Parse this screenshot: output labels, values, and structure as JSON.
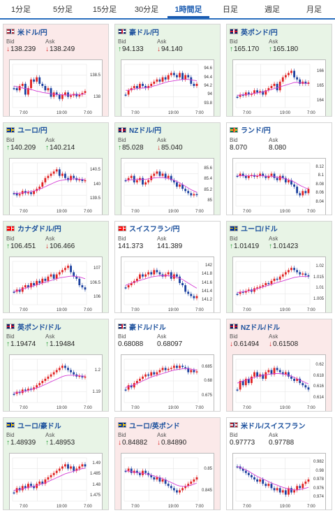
{
  "tabs": [
    {
      "label": "1分足"
    },
    {
      "label": "5分足"
    },
    {
      "label": "15分足"
    },
    {
      "label": "30分足"
    },
    {
      "label": "1時間足",
      "active": true
    },
    {
      "label": "日足"
    },
    {
      "label": "週足"
    },
    {
      "label": "月足"
    }
  ],
  "bid_label": "Bid",
  "ask_label": "Ask",
  "x_ticks": [
    "7:00",
    "19:00",
    "7:00"
  ],
  "pairs": [
    {
      "name": "米ドル/円",
      "flag": "us",
      "state": "down",
      "bid": "138.239",
      "ask": "138.249",
      "bid_dir": "down",
      "ask_dir": "down",
      "yticks": [
        "138.5",
        "138"
      ],
      "series": [
        0.55,
        0.6,
        0.5,
        0.45,
        0.7,
        0.55,
        0.35,
        0.4,
        0.3,
        0.45,
        0.5,
        0.6,
        0.55,
        0.75,
        0.65,
        0.7,
        0.8,
        0.7,
        0.65,
        0.75,
        0.72,
        0.68,
        0.74,
        0.7,
        0.66,
        0.62
      ],
      "ma": [
        0.5,
        0.52,
        0.53,
        0.55,
        0.56,
        0.57,
        0.58,
        0.6,
        0.62,
        0.63,
        0.65,
        0.66,
        0.67,
        0.68,
        0.69,
        0.7,
        0.7,
        0.7,
        0.71,
        0.71,
        0.71,
        0.7,
        0.7,
        0.7,
        0.69,
        0.68
      ]
    },
    {
      "name": "豪ドル/円",
      "flag": "au",
      "state": "up",
      "bid": "94.133",
      "ask": "94.140",
      "bid_dir": "up",
      "ask_dir": "down",
      "yticks": [
        "94.6",
        "94.4",
        "94.2",
        "94",
        "93.8"
      ],
      "series": [
        0.7,
        0.6,
        0.55,
        0.5,
        0.55,
        0.45,
        0.5,
        0.55,
        0.5,
        0.45,
        0.4,
        0.35,
        0.4,
        0.3,
        0.35,
        0.25,
        0.2,
        0.25,
        0.3,
        0.2,
        0.35,
        0.25,
        0.3,
        0.45,
        0.5,
        0.45
      ],
      "ma": [
        0.6,
        0.6,
        0.58,
        0.57,
        0.56,
        0.55,
        0.55,
        0.54,
        0.53,
        0.52,
        0.5,
        0.48,
        0.46,
        0.44,
        0.42,
        0.4,
        0.39,
        0.38,
        0.37,
        0.36,
        0.35,
        0.35,
        0.35,
        0.36,
        0.37,
        0.38
      ]
    },
    {
      "name": "英ポンド/円",
      "flag": "gb",
      "state": "up",
      "bid": "165.170",
      "ask": "165.180",
      "bid_dir": "up",
      "ask_dir": "up",
      "yticks": [
        "166",
        "165",
        "164"
      ],
      "series": [
        0.75,
        0.7,
        0.72,
        0.65,
        0.7,
        0.68,
        0.6,
        0.65,
        0.62,
        0.7,
        0.6,
        0.55,
        0.5,
        0.45,
        0.6,
        0.4,
        0.3,
        0.25,
        0.2,
        0.15,
        0.3,
        0.35,
        0.45,
        0.4,
        0.45,
        0.42
      ],
      "ma": [
        0.72,
        0.71,
        0.7,
        0.7,
        0.69,
        0.68,
        0.67,
        0.66,
        0.65,
        0.64,
        0.62,
        0.6,
        0.58,
        0.56,
        0.54,
        0.52,
        0.5,
        0.48,
        0.46,
        0.44,
        0.42,
        0.42,
        0.43,
        0.43,
        0.44,
        0.44
      ]
    },
    {
      "name": "ユーロ/円",
      "flag": "eu",
      "state": "up",
      "bid": "140.209",
      "ask": "140.214",
      "bid_dir": "up",
      "ask_dir": "up",
      "yticks": [
        "140.5",
        "140",
        "139.5"
      ],
      "series": [
        0.7,
        0.75,
        0.72,
        0.65,
        0.7,
        0.68,
        0.72,
        0.65,
        0.6,
        0.55,
        0.45,
        0.35,
        0.3,
        0.25,
        0.2,
        0.15,
        0.3,
        0.25,
        0.35,
        0.4,
        0.3,
        0.35,
        0.4,
        0.38,
        0.42,
        0.4
      ],
      "ma": [
        0.7,
        0.7,
        0.7,
        0.69,
        0.68,
        0.67,
        0.66,
        0.65,
        0.63,
        0.61,
        0.58,
        0.55,
        0.52,
        0.49,
        0.46,
        0.43,
        0.41,
        0.4,
        0.39,
        0.38,
        0.37,
        0.37,
        0.37,
        0.38,
        0.38,
        0.39
      ]
    },
    {
      "name": "NZドル/円",
      "flag": "nz",
      "state": "up",
      "bid": "85.028",
      "ask": "85.040",
      "bid_dir": "up",
      "ask_dir": "down",
      "yticks": [
        "85.6",
        "85.4",
        "85.2",
        "85"
      ],
      "series": [
        0.4,
        0.35,
        0.3,
        0.45,
        0.4,
        0.35,
        0.5,
        0.45,
        0.4,
        0.3,
        0.25,
        0.2,
        0.3,
        0.25,
        0.35,
        0.3,
        0.4,
        0.45,
        0.55,
        0.5,
        0.6,
        0.65,
        0.7,
        0.75,
        0.72,
        0.74
      ],
      "ma": [
        0.4,
        0.4,
        0.39,
        0.39,
        0.38,
        0.38,
        0.38,
        0.38,
        0.37,
        0.36,
        0.35,
        0.34,
        0.34,
        0.34,
        0.35,
        0.36,
        0.38,
        0.4,
        0.43,
        0.46,
        0.5,
        0.54,
        0.58,
        0.62,
        0.65,
        0.68
      ]
    },
    {
      "name": "ランド/円",
      "flag": "za",
      "state": "flat",
      "bid": "8.070",
      "ask": "8.080",
      "bid_dir": "none",
      "ask_dir": "none",
      "yticks": [
        "8.12",
        "8.1",
        "8.08",
        "8.06",
        "8.04"
      ],
      "series": [
        0.3,
        0.25,
        0.3,
        0.35,
        0.3,
        0.28,
        0.32,
        0.3,
        0.25,
        0.3,
        0.35,
        0.3,
        0.25,
        0.35,
        0.4,
        0.3,
        0.35,
        0.45,
        0.4,
        0.5,
        0.55,
        0.7,
        0.75,
        0.65,
        0.7,
        0.6
      ],
      "ma": [
        0.3,
        0.3,
        0.3,
        0.3,
        0.3,
        0.3,
        0.3,
        0.3,
        0.3,
        0.3,
        0.31,
        0.31,
        0.31,
        0.32,
        0.33,
        0.34,
        0.35,
        0.37,
        0.39,
        0.41,
        0.44,
        0.48,
        0.52,
        0.55,
        0.58,
        0.6
      ]
    },
    {
      "name": "カナダドル/円",
      "flag": "ca",
      "state": "up",
      "bid": "106.451",
      "ask": "106.466",
      "bid_dir": "up",
      "ask_dir": "down",
      "yticks": [
        "107",
        "106.5",
        "106"
      ],
      "series": [
        0.7,
        0.65,
        0.7,
        0.6,
        0.55,
        0.6,
        0.5,
        0.55,
        0.45,
        0.5,
        0.4,
        0.45,
        0.35,
        0.3,
        0.4,
        0.3,
        0.25,
        0.2,
        0.15,
        0.1,
        0.25,
        0.35,
        0.4,
        0.55,
        0.6,
        0.65
      ],
      "ma": [
        0.7,
        0.68,
        0.66,
        0.64,
        0.62,
        0.6,
        0.58,
        0.56,
        0.54,
        0.52,
        0.5,
        0.48,
        0.46,
        0.44,
        0.42,
        0.4,
        0.38,
        0.37,
        0.36,
        0.35,
        0.34,
        0.34,
        0.35,
        0.36,
        0.38,
        0.4
      ]
    },
    {
      "name": "スイスフラン/円",
      "flag": "ch",
      "state": "flat",
      "bid": "141.373",
      "ask": "141.389",
      "bid_dir": "none",
      "ask_dir": "none",
      "yticks": [
        "142",
        "141.8",
        "141.6",
        "141.4",
        "141.2"
      ],
      "series": [
        0.6,
        0.55,
        0.5,
        0.45,
        0.4,
        0.3,
        0.35,
        0.3,
        0.25,
        0.3,
        0.2,
        0.25,
        0.3,
        0.35,
        0.3,
        0.25,
        0.4,
        0.3,
        0.35,
        0.5,
        0.55,
        0.7,
        0.75,
        0.8,
        0.85,
        0.8
      ],
      "ma": [
        0.55,
        0.53,
        0.5,
        0.48,
        0.46,
        0.44,
        0.42,
        0.4,
        0.38,
        0.36,
        0.35,
        0.34,
        0.33,
        0.33,
        0.33,
        0.33,
        0.34,
        0.35,
        0.37,
        0.39,
        0.42,
        0.46,
        0.5,
        0.54,
        0.58,
        0.62
      ]
    },
    {
      "name": "ユーロ/ドル",
      "flag": "eu-us",
      "state": "up",
      "bid": "1.01419",
      "ask": "1.01423",
      "bid_dir": "up",
      "ask_dir": "up",
      "yticks": [
        "1.02",
        "1.015",
        "1.01",
        "1.005"
      ],
      "series": [
        0.75,
        0.7,
        0.72,
        0.68,
        0.65,
        0.7,
        0.62,
        0.6,
        0.58,
        0.55,
        0.5,
        0.52,
        0.45,
        0.4,
        0.42,
        0.35,
        0.3,
        0.25,
        0.2,
        0.15,
        0.2,
        0.25,
        0.3,
        0.28,
        0.32,
        0.35
      ],
      "ma": [
        0.72,
        0.71,
        0.7,
        0.69,
        0.68,
        0.67,
        0.65,
        0.63,
        0.61,
        0.59,
        0.57,
        0.55,
        0.53,
        0.51,
        0.49,
        0.47,
        0.45,
        0.43,
        0.41,
        0.39,
        0.37,
        0.36,
        0.35,
        0.35,
        0.35,
        0.35
      ]
    },
    {
      "name": "英ポンド/ドル",
      "flag": "gb-us",
      "state": "up",
      "bid": "1.19474",
      "ask": "1.19484",
      "bid_dir": "up",
      "ask_dir": "up",
      "yticks": [
        "1.2",
        "1.19"
      ],
      "series": [
        0.8,
        0.75,
        0.78,
        0.7,
        0.72,
        0.68,
        0.7,
        0.65,
        0.6,
        0.55,
        0.5,
        0.45,
        0.4,
        0.35,
        0.3,
        0.25,
        0.2,
        0.15,
        0.2,
        0.25,
        0.3,
        0.35,
        0.4,
        0.38,
        0.42,
        0.4
      ],
      "ma": [
        0.78,
        0.77,
        0.76,
        0.75,
        0.74,
        0.72,
        0.7,
        0.68,
        0.66,
        0.64,
        0.61,
        0.58,
        0.55,
        0.52,
        0.49,
        0.46,
        0.43,
        0.4,
        0.38,
        0.37,
        0.37,
        0.37,
        0.38,
        0.38,
        0.39,
        0.39
      ]
    },
    {
      "name": "豪ドル/ドル",
      "flag": "au-us",
      "state": "flat",
      "bid": "0.68088",
      "ask": "0.68097",
      "bid_dir": "none",
      "ask_dir": "none",
      "yticks": [
        "0.685",
        "0.68",
        "0.675"
      ],
      "series": [
        0.7,
        0.6,
        0.65,
        0.55,
        0.5,
        0.45,
        0.4,
        0.35,
        0.38,
        0.3,
        0.35,
        0.3,
        0.25,
        0.2,
        0.25,
        0.22,
        0.2,
        0.15,
        0.2,
        0.15,
        0.18,
        0.2,
        0.3,
        0.25,
        0.3,
        0.28
      ],
      "ma": [
        0.65,
        0.63,
        0.61,
        0.59,
        0.56,
        0.53,
        0.5,
        0.47,
        0.44,
        0.41,
        0.39,
        0.37,
        0.35,
        0.33,
        0.31,
        0.29,
        0.27,
        0.25,
        0.24,
        0.23,
        0.22,
        0.22,
        0.22,
        0.23,
        0.24,
        0.25
      ]
    },
    {
      "name": "NZドル/ドル",
      "flag": "nz-us",
      "state": "down",
      "bid": "0.61494",
      "ask": "0.61508",
      "bid_dir": "down",
      "ask_dir": "down",
      "yticks": [
        "0.62",
        "0.618",
        "0.616",
        "0.614"
      ],
      "series": [
        0.7,
        0.5,
        0.6,
        0.45,
        0.55,
        0.4,
        0.3,
        0.4,
        0.35,
        0.45,
        0.3,
        0.25,
        0.35,
        0.2,
        0.25,
        0.3,
        0.35,
        0.3,
        0.4,
        0.45,
        0.5,
        0.45,
        0.55,
        0.6,
        0.65,
        0.7
      ],
      "ma": [
        0.55,
        0.53,
        0.5,
        0.48,
        0.46,
        0.44,
        0.42,
        0.4,
        0.38,
        0.37,
        0.36,
        0.35,
        0.34,
        0.33,
        0.33,
        0.33,
        0.34,
        0.35,
        0.37,
        0.39,
        0.42,
        0.45,
        0.48,
        0.51,
        0.54,
        0.57
      ]
    },
    {
      "name": "ユーロ/豪ドル",
      "flag": "eu-au",
      "state": "up",
      "bid": "1.48939",
      "ask": "1.48953",
      "bid_dir": "up",
      "ask_dir": "up",
      "yticks": [
        "1.49",
        "1.485",
        "1.48",
        "1.475"
      ],
      "series": [
        0.8,
        0.7,
        0.75,
        0.65,
        0.7,
        0.6,
        0.65,
        0.7,
        0.6,
        0.55,
        0.6,
        0.5,
        0.45,
        0.4,
        0.35,
        0.3,
        0.25,
        0.2,
        0.15,
        0.25,
        0.2,
        0.3,
        0.25,
        0.2,
        0.15,
        0.2
      ],
      "ma": [
        0.75,
        0.74,
        0.73,
        0.72,
        0.7,
        0.68,
        0.67,
        0.66,
        0.64,
        0.62,
        0.6,
        0.58,
        0.55,
        0.52,
        0.49,
        0.46,
        0.43,
        0.4,
        0.37,
        0.35,
        0.33,
        0.31,
        0.29,
        0.27,
        0.25,
        0.24
      ]
    },
    {
      "name": "ユーロ/英ポンド",
      "flag": "eu-gb",
      "state": "down",
      "bid": "0.84882",
      "ask": "0.84890",
      "bid_dir": "down",
      "ask_dir": "down",
      "yticks": [
        "0.85",
        "0.845"
      ],
      "series": [
        0.3,
        0.25,
        0.35,
        0.3,
        0.35,
        0.4,
        0.3,
        0.35,
        0.4,
        0.45,
        0.5,
        0.45,
        0.55,
        0.5,
        0.6,
        0.65,
        0.7,
        0.75,
        0.8,
        0.75,
        0.7,
        0.65,
        0.6,
        0.55,
        0.5,
        0.45
      ],
      "ma": [
        0.3,
        0.31,
        0.32,
        0.33,
        0.34,
        0.35,
        0.36,
        0.37,
        0.38,
        0.4,
        0.42,
        0.44,
        0.46,
        0.48,
        0.51,
        0.54,
        0.57,
        0.6,
        0.63,
        0.65,
        0.66,
        0.66,
        0.65,
        0.63,
        0.61,
        0.58
      ]
    },
    {
      "name": "米ドル/スイスフラン",
      "flag": "us-ch",
      "state": "flat",
      "bid": "0.97773",
      "ask": "0.97788",
      "bid_dir": "none",
      "ask_dir": "none",
      "yticks": [
        "0.982",
        "0.98",
        "0.978",
        "0.976",
        "0.974"
      ],
      "series": [
        0.2,
        0.25,
        0.3,
        0.35,
        0.4,
        0.45,
        0.5,
        0.55,
        0.5,
        0.6,
        0.65,
        0.6,
        0.7,
        0.75,
        0.7,
        0.8,
        0.75,
        0.85,
        0.7,
        0.8,
        0.75,
        0.65,
        0.7,
        0.6,
        0.55,
        0.5
      ],
      "ma": [
        0.2,
        0.22,
        0.25,
        0.28,
        0.31,
        0.35,
        0.39,
        0.43,
        0.46,
        0.49,
        0.52,
        0.55,
        0.58,
        0.61,
        0.63,
        0.66,
        0.68,
        0.7,
        0.72,
        0.73,
        0.74,
        0.74,
        0.73,
        0.72,
        0.7,
        0.68
      ]
    }
  ]
}
